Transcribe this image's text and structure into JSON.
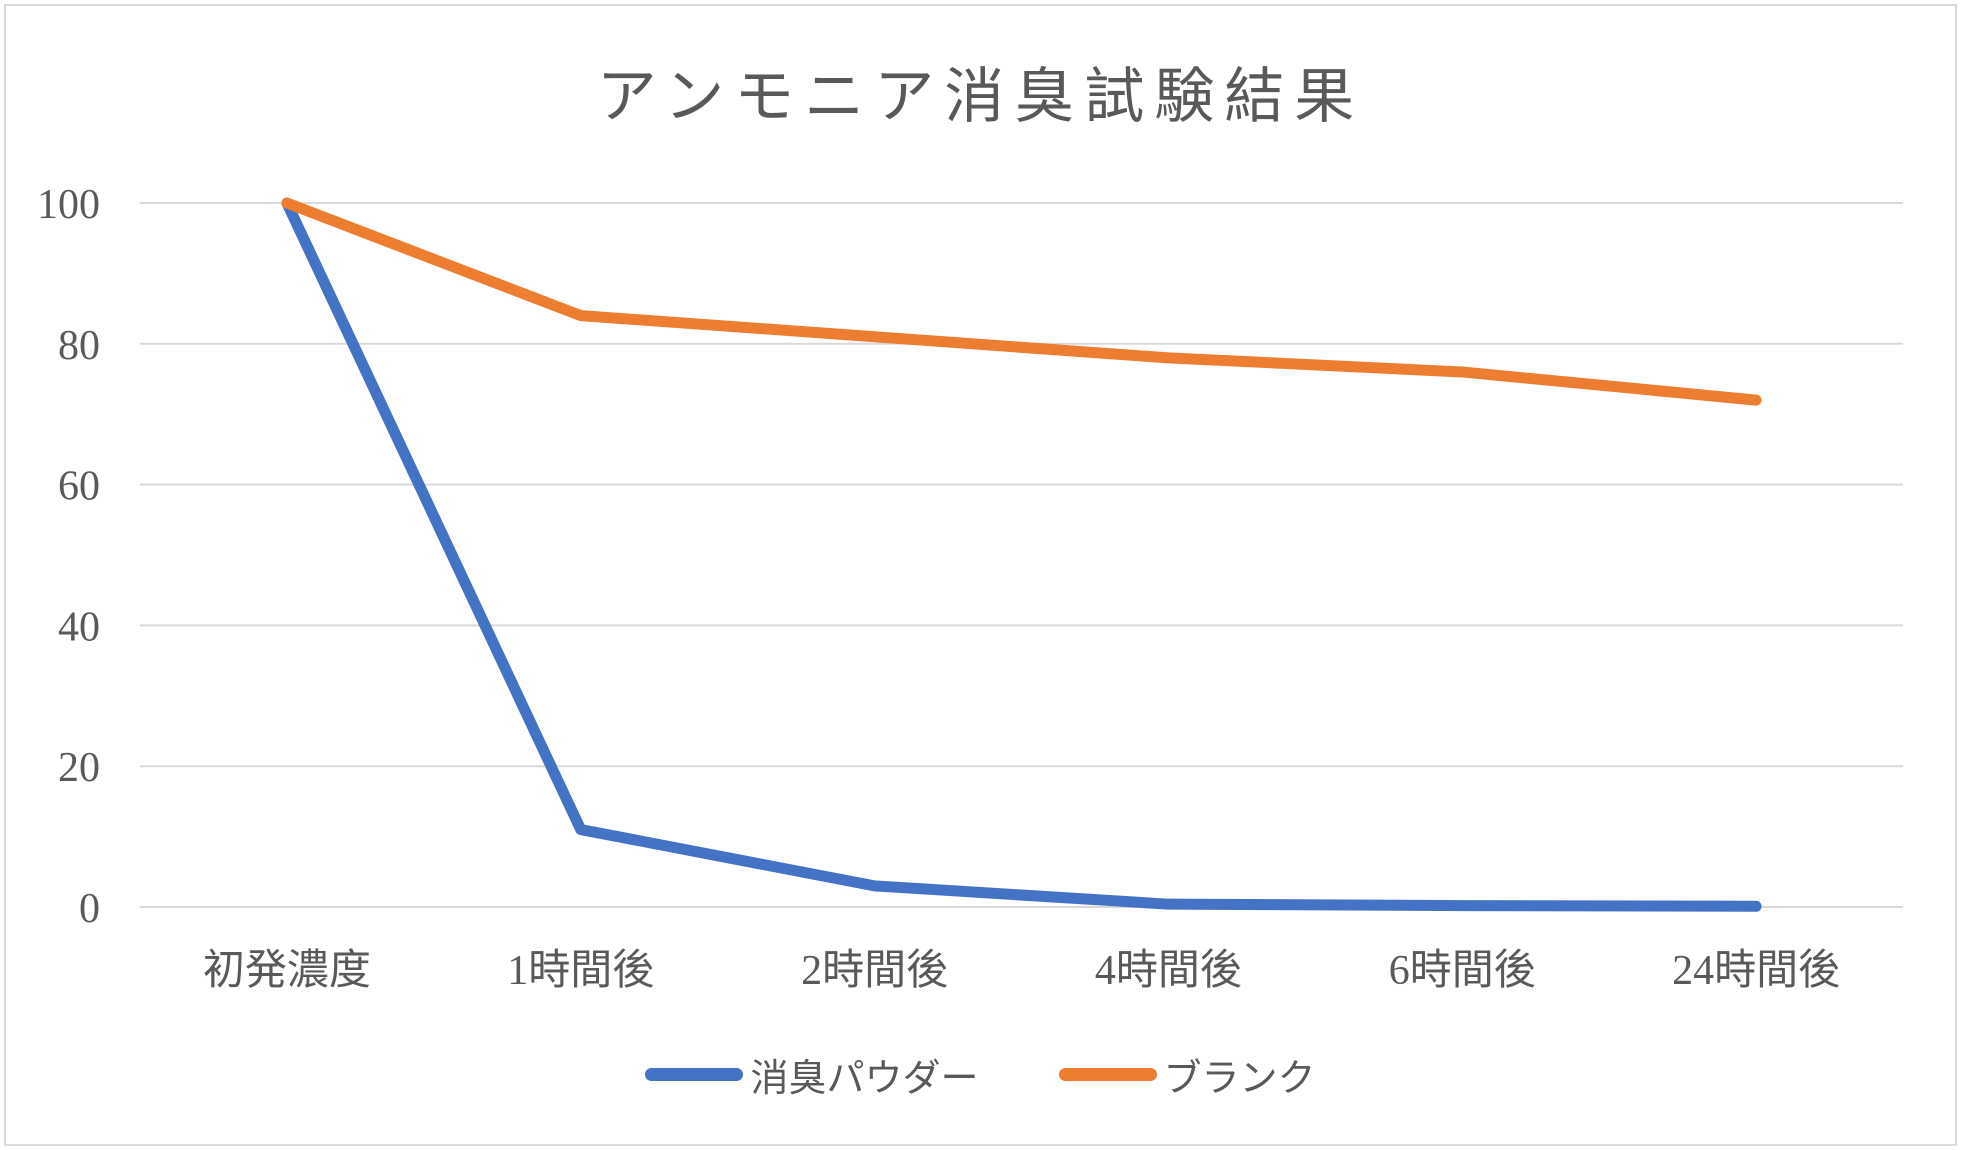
{
  "title": "アンモニア消臭試験結果",
  "colors": {
    "background": "#FFFFFF",
    "border": "#D9D9D9",
    "gridline": "#D9D9D9",
    "text": "#595959"
  },
  "chart_data": {
    "type": "line",
    "title": "アンモニア消臭試験結果",
    "categories": [
      "初発濃度",
      "1時間後",
      "2時間後",
      "4時間後",
      "6時間後",
      "24時間後"
    ],
    "series": [
      {
        "name": "消臭パウダー",
        "color": "#4472C4",
        "values": [
          100,
          11,
          3,
          0.4,
          0.2,
          0.1
        ]
      },
      {
        "name": "ブランク",
        "color": "#ED7D31",
        "values": [
          100,
          84,
          81,
          78,
          76,
          72
        ]
      }
    ],
    "xlabel": "",
    "ylabel": "",
    "ylim": [
      0,
      100
    ],
    "yticks": [
      0,
      20,
      40,
      60,
      80,
      100
    ],
    "grid": "horizontal",
    "legend_position": "bottom"
  }
}
